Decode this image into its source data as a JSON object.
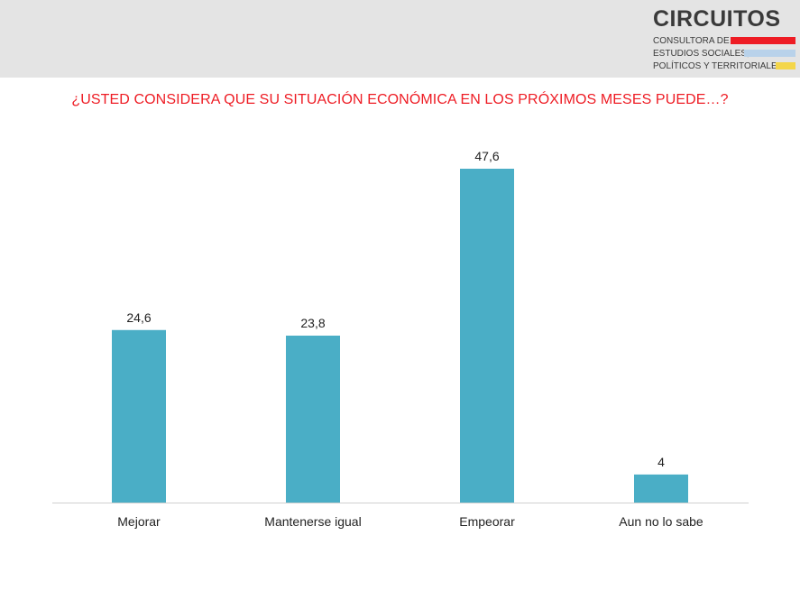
{
  "logo": {
    "name": "CIRCUITOS",
    "line1": "CONSULTORA DE",
    "line2": "ESTUDIOS SOCIALES,",
    "line3": "POLÍTICOS Y TERRITORIALES",
    "bar_colors": [
      "#ee1c24",
      "#b9d2ea",
      "#f4d64a"
    ]
  },
  "colors": {
    "header_background": "#e4e4e4",
    "question": "#ee1c24",
    "bar": "#4aaec6"
  },
  "chart_data": {
    "type": "bar",
    "title": "¿USTED CONSIDERA QUE SU SITUACIÓN ECONÓMICA EN LOS PRÓXIMOS MESES PUEDE…?",
    "categories": [
      "Mejorar",
      "Mantenerse igual",
      "Empeorar",
      "Aun no lo sabe"
    ],
    "values": [
      24.6,
      23.8,
      47.6,
      4
    ],
    "value_labels": [
      "24,6",
      "23,8",
      "47,6",
      "4"
    ],
    "xlabel": "",
    "ylabel": "",
    "grid": false,
    "legend": "none"
  }
}
